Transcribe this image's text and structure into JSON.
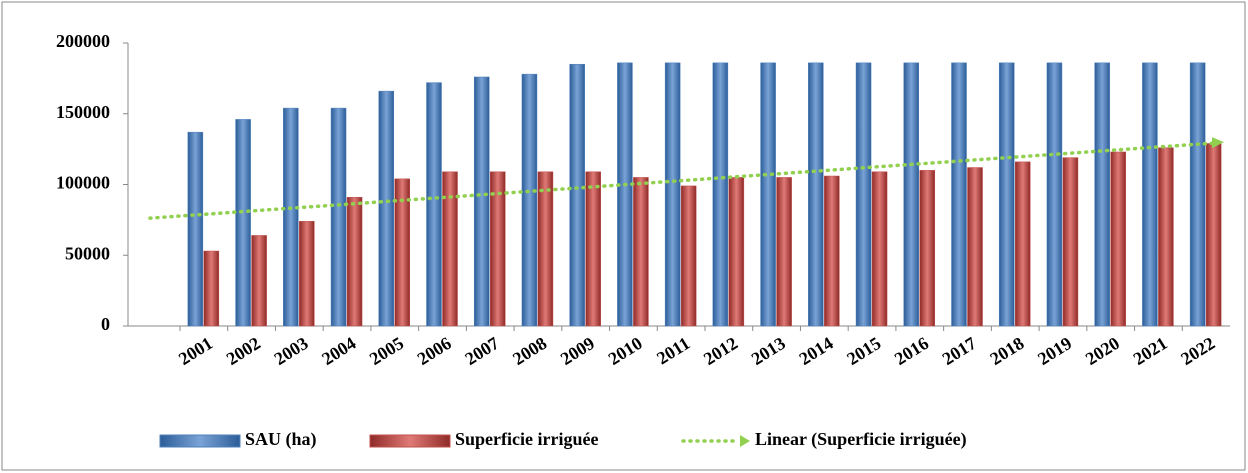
{
  "chart_data": {
    "type": "bar",
    "categories": [
      "2001",
      "2002",
      "2003",
      "2004",
      "2005",
      "2006",
      "2007",
      "2008",
      "2009",
      "2010",
      "2011",
      "2012",
      "2013",
      "2014",
      "2015",
      "2016",
      "2017",
      "2018",
      "2019",
      "2020",
      "2021",
      "2022"
    ],
    "series": [
      {
        "name": "SAU (ha)",
        "color": "#4f81bd",
        "values": [
          137000,
          146000,
          154000,
          154000,
          166000,
          172000,
          176000,
          178000,
          185000,
          186000,
          186000,
          186000,
          186000,
          186000,
          186000,
          186000,
          186000,
          186000,
          186000,
          186000,
          186000,
          186000
        ]
      },
      {
        "name": "Superficie irriguée",
        "color": "#c0504d",
        "values": [
          53000,
          64000,
          74000,
          91000,
          104000,
          109000,
          109000,
          109000,
          109000,
          105000,
          99000,
          105000,
          105000,
          106000,
          109000,
          110000,
          112000,
          116000,
          119000,
          123000,
          126000,
          129000
        ]
      }
    ],
    "trendline": {
      "name": "Linear (Superficie irriguée)",
      "color": "#92d050",
      "series": 1
    },
    "ylim": [
      0,
      200000
    ],
    "yticks": [
      0,
      50000,
      100000,
      150000,
      200000
    ],
    "grid": false
  }
}
